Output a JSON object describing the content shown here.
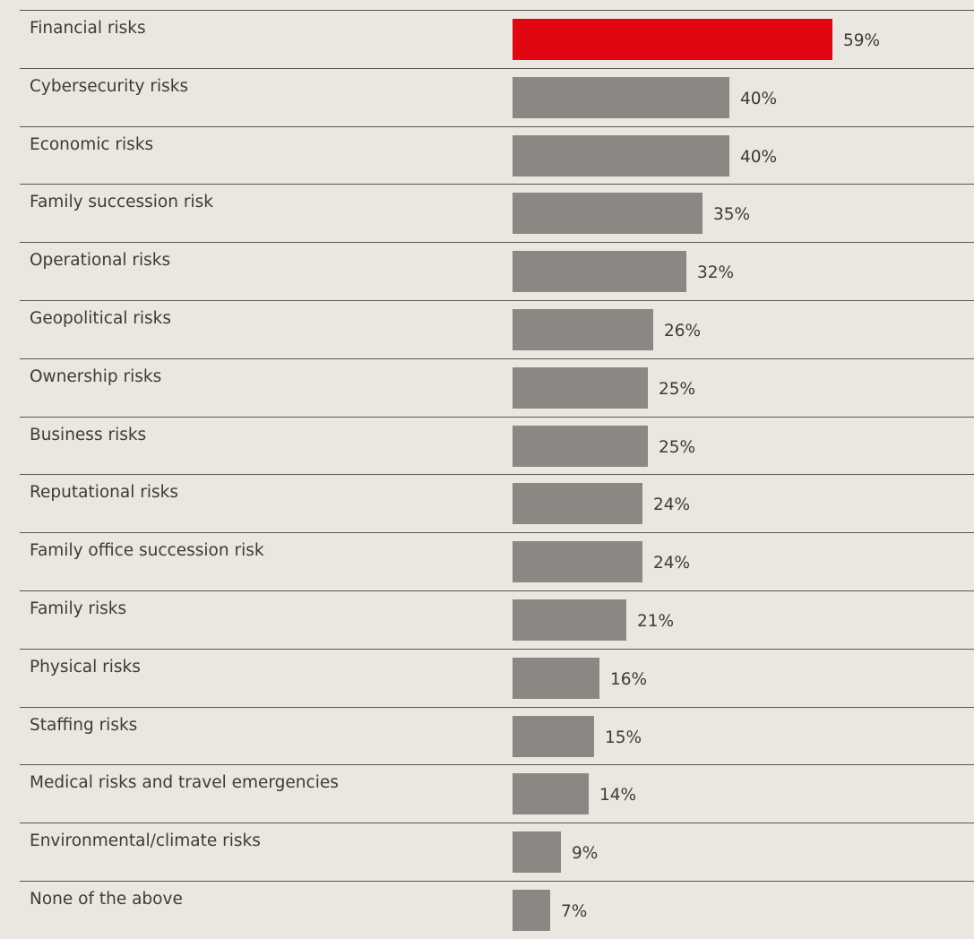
{
  "colors": {
    "background": "#ebe6e0",
    "highlight_bar": "#e20613",
    "default_bar": "#8c8783",
    "divider": "#5a5550",
    "text": "#3f3a36"
  },
  "chart_data": {
    "type": "bar",
    "orientation": "horizontal",
    "unit": "%",
    "categories": [
      "Financial risks",
      "Cybersecurity risks",
      "Economic risks",
      "Family succession risk",
      "Operational risks",
      "Geopolitical risks",
      "Ownership risks",
      "Business risks",
      "Reputational risks",
      "Family office succession risk",
      "Family risks",
      "Physical risks",
      "Staffing risks",
      "Medical risks and travel emergencies",
      "Environmental/climate risks",
      "None of the above"
    ],
    "values": [
      59,
      40,
      40,
      35,
      32,
      26,
      25,
      25,
      24,
      24,
      21,
      16,
      15,
      14,
      9,
      7
    ],
    "value_labels": [
      "59%",
      "40%",
      "40%",
      "35%",
      "32%",
      "26%",
      "25%",
      "25%",
      "24%",
      "24%",
      "21%",
      "16%",
      "15%",
      "14%",
      "9%",
      "7%"
    ],
    "highlighted_index": 0,
    "xlim": [
      0,
      100
    ],
    "title": "",
    "xlabel": "",
    "ylabel": "",
    "grid": false,
    "legend": "none"
  }
}
